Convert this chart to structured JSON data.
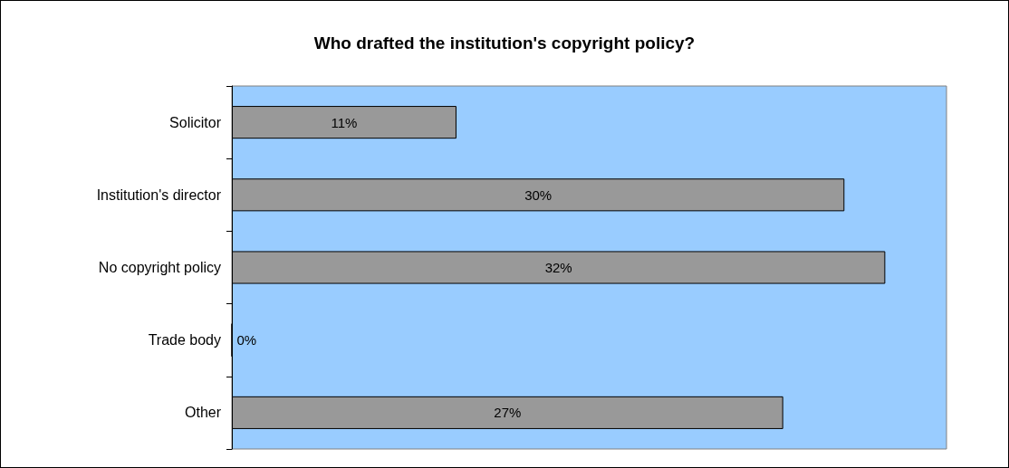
{
  "chart_data": {
    "type": "bar",
    "orientation": "horizontal",
    "title": "Who drafted the institution's copyright policy?",
    "categories": [
      "Solicitor",
      "Institution's director",
      "No copyright policy",
      "Trade body",
      "Other"
    ],
    "values": [
      11,
      30,
      32,
      0,
      27
    ],
    "value_labels": [
      "11%",
      "30%",
      "32%",
      "0%",
      "27%"
    ],
    "color": "#999999",
    "grid": false
  }
}
